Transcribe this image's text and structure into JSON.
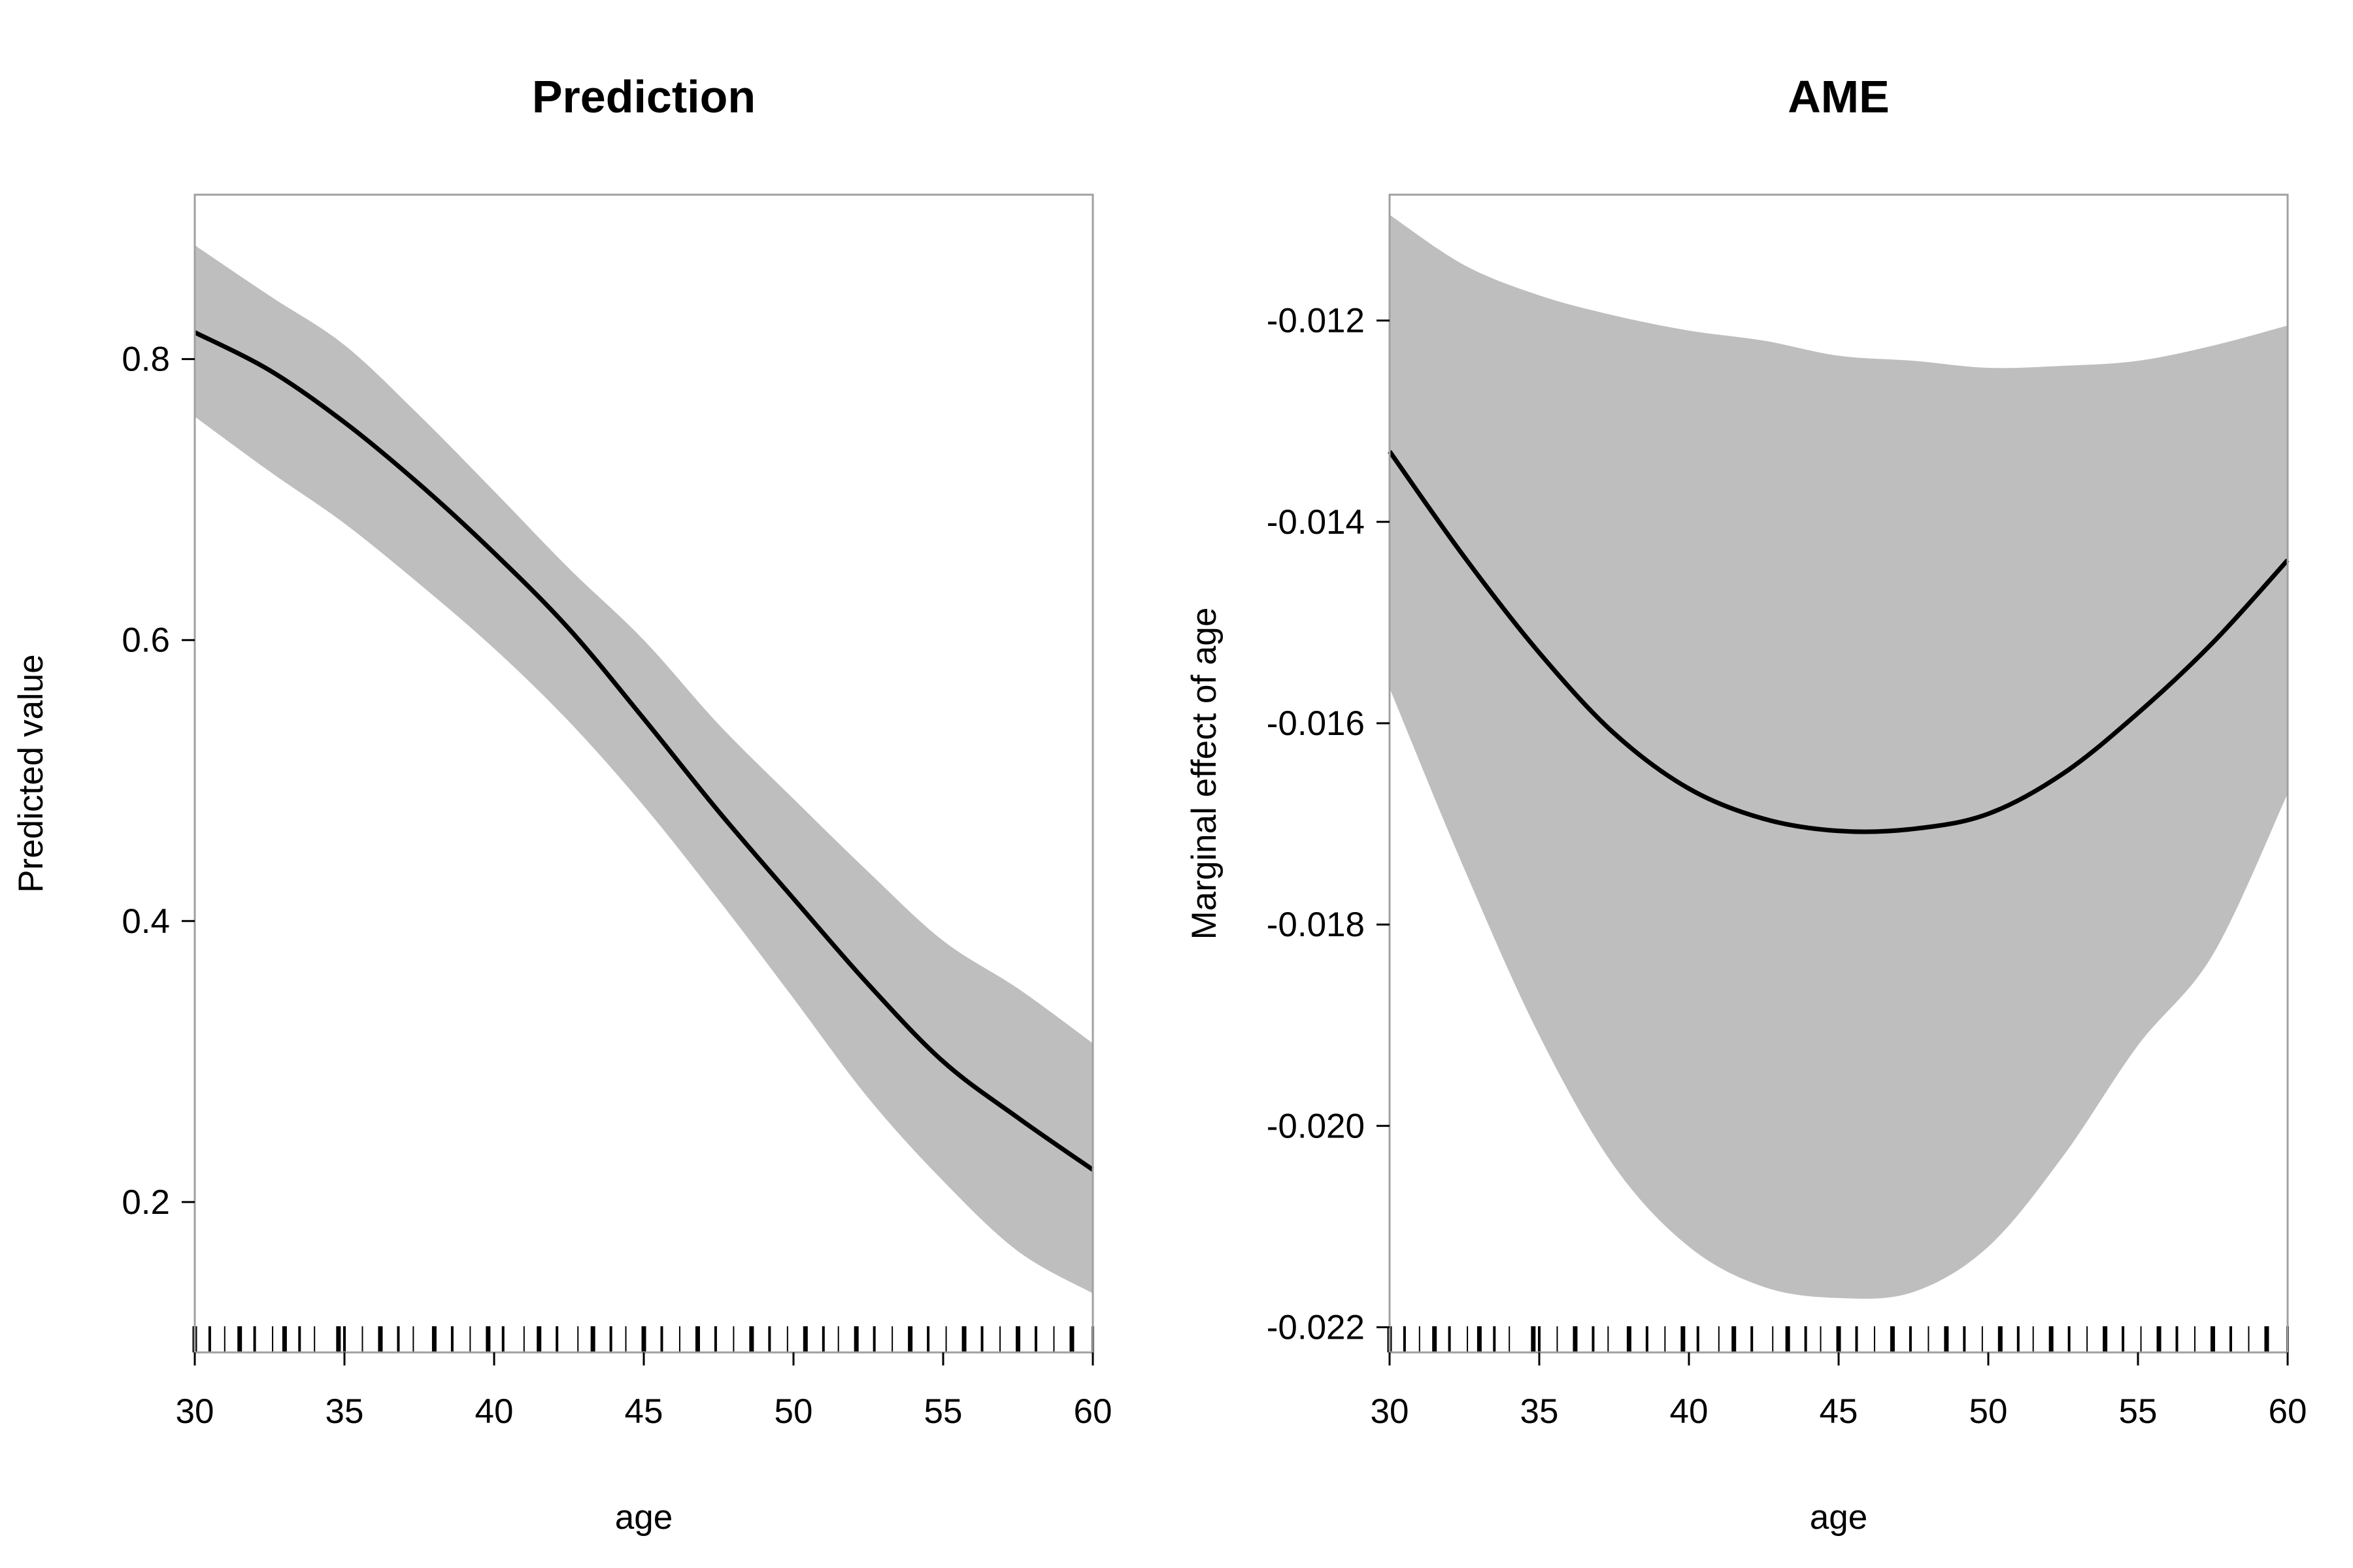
{
  "chart_data": [
    {
      "type": "line",
      "title": "Prediction",
      "xlabel": "age",
      "ylabel": "Predicted value",
      "xlim": [
        30,
        60
      ],
      "ylim": [
        0.093,
        0.917
      ],
      "x_ticks": [
        30,
        35,
        40,
        45,
        50,
        55,
        60
      ],
      "y_ticks": [
        "0.2",
        "0.4",
        "0.6",
        "0.8"
      ],
      "grid": false,
      "series": [
        {
          "x": [
            30,
            32.5,
            35,
            37.5,
            40,
            42.5,
            45,
            47.5,
            50,
            52.5,
            55,
            57.5,
            60
          ],
          "values": [
            0.819,
            0.792,
            0.755,
            0.711,
            0.662,
            0.608,
            0.544,
            0.478,
            0.416,
            0.355,
            0.3,
            0.26,
            0.223
          ],
          "lower": [
            0.759,
            0.72,
            0.683,
            0.64,
            0.594,
            0.542,
            0.482,
            0.415,
            0.345,
            0.274,
            0.215,
            0.165,
            0.135
          ],
          "upper": [
            0.881,
            0.845,
            0.81,
            0.76,
            0.706,
            0.651,
            0.6,
            0.54,
            0.487,
            0.435,
            0.386,
            0.352,
            0.313
          ]
        }
      ],
      "rug_x": [
        30,
        30.5,
        31,
        31.5,
        32,
        32.6,
        33,
        33.5,
        34,
        34.8,
        35,
        35.6,
        36.2,
        36.8,
        37.3,
        38,
        38.6,
        39.2,
        39.8,
        40.3,
        41,
        41.5,
        42.1,
        42.8,
        43.3,
        43.9,
        44.4,
        45,
        45.6,
        46.2,
        46.8,
        47.4,
        48,
        48.6,
        49.2,
        49.8,
        50.4,
        51,
        51.5,
        52.1,
        52.7,
        53.3,
        53.9,
        54.5,
        55.1,
        55.7,
        56.3,
        56.9,
        57.5,
        58.1,
        58.7,
        59.3,
        60
      ]
    },
    {
      "type": "line",
      "title": "AME",
      "xlabel": "age",
      "ylabel": "Marginal effect of age",
      "xlim": [
        30,
        60
      ],
      "ylim": [
        -0.02225,
        -0.01075
      ],
      "x_ticks": [
        30,
        35,
        40,
        45,
        50,
        55,
        60
      ],
      "y_ticks": [
        "-0.012",
        "-0.014",
        "-0.016",
        "-0.018",
        "-0.020",
        "-0.022"
      ],
      "grid": false,
      "series": [
        {
          "x": [
            30,
            32.5,
            35,
            37.5,
            40,
            42.5,
            45,
            47.5,
            50,
            52.5,
            55,
            57.5,
            60
          ],
          "values": [
            -0.0133,
            -0.01435,
            -0.0153,
            -0.0161,
            -0.01665,
            -0.01695,
            -0.01707,
            -0.01705,
            -0.0169,
            -0.0165,
            -0.0159,
            -0.0152,
            -0.01438
          ],
          "lower": [
            -0.01565,
            -0.01745,
            -0.0191,
            -0.0204,
            -0.0212,
            -0.0216,
            -0.02171,
            -0.02165,
            -0.0212,
            -0.0203,
            -0.0192,
            -0.0183,
            -0.0167
          ],
          "upper": [
            -0.01095,
            -0.01145,
            -0.01175,
            -0.01195,
            -0.0121,
            -0.0122,
            -0.01235,
            -0.0124,
            -0.01247,
            -0.01245,
            -0.0124,
            -0.01225,
            -0.01205
          ]
        }
      ],
      "rug_x": [
        30,
        30.5,
        31,
        31.5,
        32,
        32.6,
        33,
        33.5,
        34,
        34.8,
        35,
        35.6,
        36.2,
        36.8,
        37.3,
        38,
        38.6,
        39.2,
        39.8,
        40.3,
        41,
        41.5,
        42.1,
        42.8,
        43.3,
        43.9,
        44.4,
        45,
        45.6,
        46.2,
        46.8,
        47.4,
        48,
        48.6,
        49.2,
        49.8,
        50.4,
        51,
        51.5,
        52.1,
        52.7,
        53.3,
        53.9,
        54.5,
        55.1,
        55.7,
        56.3,
        56.9,
        57.5,
        58.1,
        58.7,
        59.3,
        60
      ]
    }
  ],
  "colors": {
    "band": "#bebebe",
    "line": "#000000",
    "frame": "#a0a0a0",
    "rug": "#000000"
  }
}
